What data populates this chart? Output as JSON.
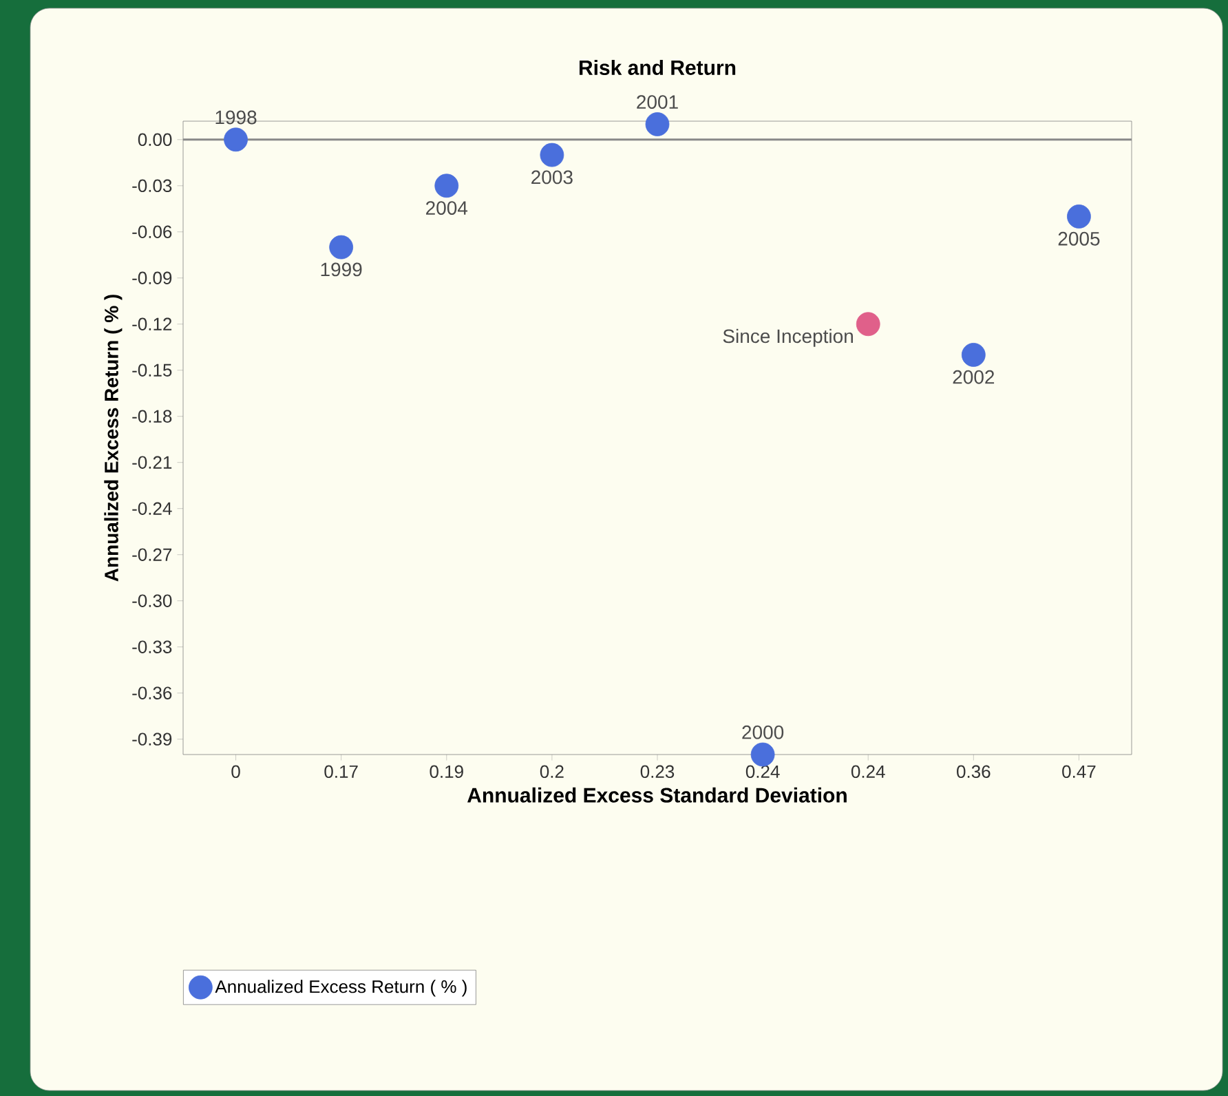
{
  "chart_data": {
    "type": "scatter",
    "title": "Risk and Return",
    "xlabel": "Annualized Excess Standard Deviation",
    "ylabel": "Annualized Excess Return ( % )",
    "categories": [
      "0",
      "0.17",
      "0.19",
      "0.2",
      "0.23",
      "0.24",
      "0.24",
      "0.36",
      "0.47"
    ],
    "series": [
      {
        "name": "Annualized Excess Return ( % )",
        "color": "#4a6fdc",
        "values": [
          0.0,
          -0.07,
          -0.03,
          -0.01,
          0.01,
          -0.4,
          null,
          -0.14,
          -0.05
        ]
      },
      {
        "name": "Since Inception",
        "color": "#e0608a",
        "values": [
          null,
          null,
          null,
          null,
          null,
          null,
          -0.12,
          null,
          null
        ]
      }
    ],
    "ylim": [
      -0.4,
      0.012
    ],
    "yticks": [
      {
        "value": 0,
        "label": "0.00"
      },
      {
        "value": -0.03,
        "label": "-0.03"
      },
      {
        "value": -0.06,
        "label": "-0.06"
      },
      {
        "value": -0.09,
        "label": "-0.09"
      },
      {
        "value": -0.12,
        "label": "-0.12"
      },
      {
        "value": -0.15,
        "label": "-0.15"
      },
      {
        "value": -0.18,
        "label": "-0.18"
      },
      {
        "value": -0.21,
        "label": "-0.21"
      },
      {
        "value": -0.24,
        "label": "-0.24"
      },
      {
        "value": -0.27,
        "label": "-0.27"
      },
      {
        "value": -0.3,
        "label": "-0.30"
      },
      {
        "value": -0.33,
        "label": "-0.33"
      },
      {
        "value": -0.36,
        "label": "-0.36"
      },
      {
        "value": -0.39,
        "label": "-0.39"
      }
    ],
    "annotations": [
      {
        "text": "1998",
        "x": "0",
        "y": 0.0
      },
      {
        "text": "1999",
        "x": "0.17",
        "y": -0.07
      },
      {
        "text": "2004",
        "x": "0.19",
        "y": -0.03
      },
      {
        "text": "2003",
        "x": "0.2",
        "y": -0.01
      },
      {
        "text": "2001",
        "x": "0.23",
        "y": 0.01
      },
      {
        "text": "2000",
        "x": "0.24",
        "y": -0.4
      },
      {
        "text": "2002",
        "x": "0.36",
        "y": -0.14
      },
      {
        "text": "2005",
        "x": "0.47",
        "y": -0.05
      }
    ],
    "ref_lines": [
      {
        "axis": "y",
        "value": 0,
        "color": "#888888"
      }
    ],
    "grid": false,
    "legend": "bottom"
  }
}
